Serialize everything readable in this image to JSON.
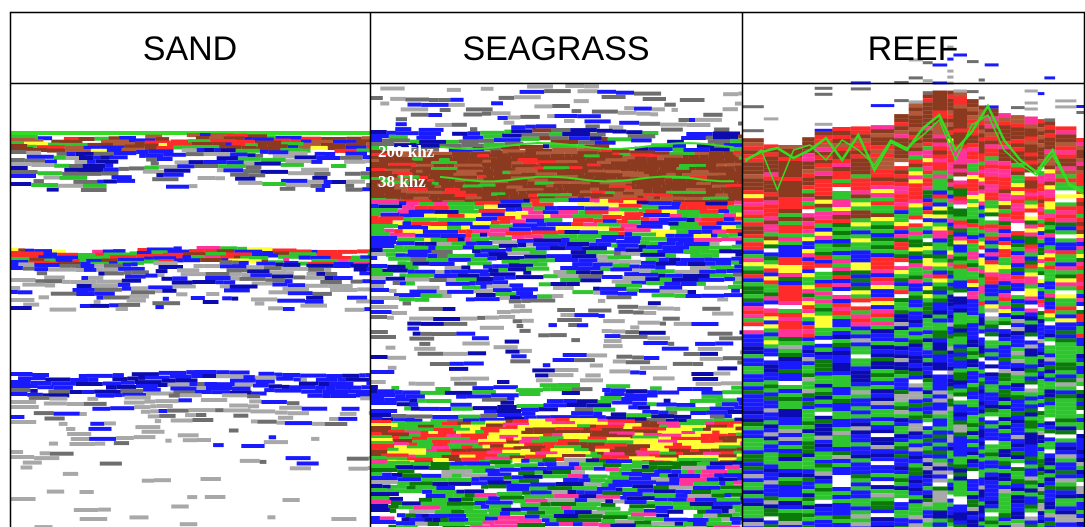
{
  "columns": [
    {
      "id": "sand",
      "label": "SAND"
    },
    {
      "id": "seagrass",
      "label": "SEAGRASS"
    },
    {
      "id": "reef",
      "label": "REEF"
    }
  ],
  "annotations": {
    "freq_high": "200 khz",
    "freq_low": "38 khz"
  },
  "colors": {
    "border": "#000000",
    "trace_line": "#33dd22",
    "annotation_text": "#ffffff",
    "echo_palette": [
      "#a8a8a8",
      "#6e6e6e",
      "#1a1aff",
      "#0b0bb0",
      "#2ec52e",
      "#0b7a0b",
      "#ffff33",
      "#ff2a2a",
      "#ff3399",
      "#8b3a20",
      "#b05a3a"
    ]
  }
}
